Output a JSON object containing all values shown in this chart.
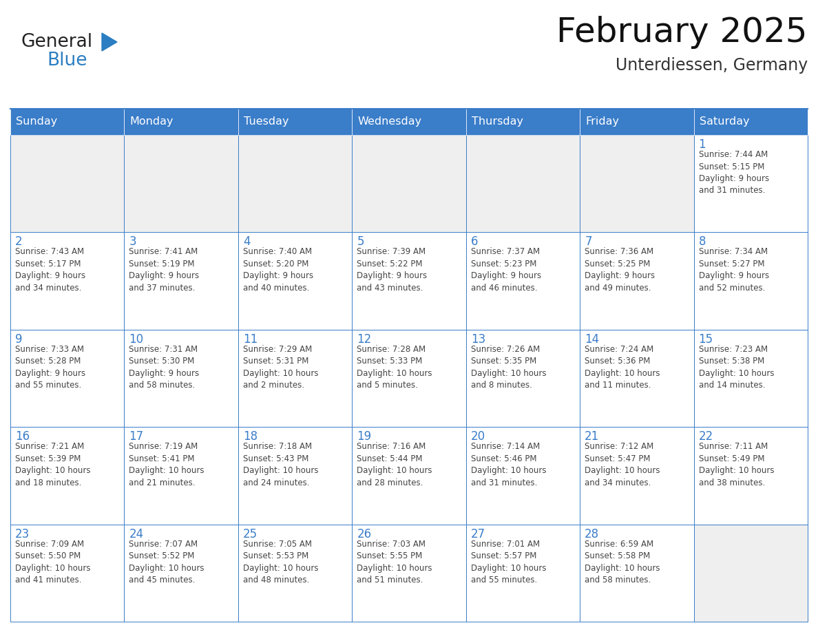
{
  "title": "February 2025",
  "subtitle": "Unterdiessen, Germany",
  "header_color": "#3A7DC9",
  "header_text_color": "#FFFFFF",
  "cell_bg_white": "#FFFFFF",
  "cell_bg_gray": "#EFEFEF",
  "border_color": "#3A7DC9",
  "day_num_color": "#3A7DC9",
  "cell_text_color": "#444444",
  "title_color": "#111111",
  "subtitle_color": "#333333",
  "logo_color1": "#222222",
  "logo_color2": "#2B7EC1",
  "weekdays": [
    "Sunday",
    "Monday",
    "Tuesday",
    "Wednesday",
    "Thursday",
    "Friday",
    "Saturday"
  ],
  "calendar": [
    [
      {
        "day": 0,
        "info": ""
      },
      {
        "day": 0,
        "info": ""
      },
      {
        "day": 0,
        "info": ""
      },
      {
        "day": 0,
        "info": ""
      },
      {
        "day": 0,
        "info": ""
      },
      {
        "day": 0,
        "info": ""
      },
      {
        "day": 1,
        "info": "Sunrise: 7:44 AM\nSunset: 5:15 PM\nDaylight: 9 hours\nand 31 minutes."
      }
    ],
    [
      {
        "day": 2,
        "info": "Sunrise: 7:43 AM\nSunset: 5:17 PM\nDaylight: 9 hours\nand 34 minutes."
      },
      {
        "day": 3,
        "info": "Sunrise: 7:41 AM\nSunset: 5:19 PM\nDaylight: 9 hours\nand 37 minutes."
      },
      {
        "day": 4,
        "info": "Sunrise: 7:40 AM\nSunset: 5:20 PM\nDaylight: 9 hours\nand 40 minutes."
      },
      {
        "day": 5,
        "info": "Sunrise: 7:39 AM\nSunset: 5:22 PM\nDaylight: 9 hours\nand 43 minutes."
      },
      {
        "day": 6,
        "info": "Sunrise: 7:37 AM\nSunset: 5:23 PM\nDaylight: 9 hours\nand 46 minutes."
      },
      {
        "day": 7,
        "info": "Sunrise: 7:36 AM\nSunset: 5:25 PM\nDaylight: 9 hours\nand 49 minutes."
      },
      {
        "day": 8,
        "info": "Sunrise: 7:34 AM\nSunset: 5:27 PM\nDaylight: 9 hours\nand 52 minutes."
      }
    ],
    [
      {
        "day": 9,
        "info": "Sunrise: 7:33 AM\nSunset: 5:28 PM\nDaylight: 9 hours\nand 55 minutes."
      },
      {
        "day": 10,
        "info": "Sunrise: 7:31 AM\nSunset: 5:30 PM\nDaylight: 9 hours\nand 58 minutes."
      },
      {
        "day": 11,
        "info": "Sunrise: 7:29 AM\nSunset: 5:31 PM\nDaylight: 10 hours\nand 2 minutes."
      },
      {
        "day": 12,
        "info": "Sunrise: 7:28 AM\nSunset: 5:33 PM\nDaylight: 10 hours\nand 5 minutes."
      },
      {
        "day": 13,
        "info": "Sunrise: 7:26 AM\nSunset: 5:35 PM\nDaylight: 10 hours\nand 8 minutes."
      },
      {
        "day": 14,
        "info": "Sunrise: 7:24 AM\nSunset: 5:36 PM\nDaylight: 10 hours\nand 11 minutes."
      },
      {
        "day": 15,
        "info": "Sunrise: 7:23 AM\nSunset: 5:38 PM\nDaylight: 10 hours\nand 14 minutes."
      }
    ],
    [
      {
        "day": 16,
        "info": "Sunrise: 7:21 AM\nSunset: 5:39 PM\nDaylight: 10 hours\nand 18 minutes."
      },
      {
        "day": 17,
        "info": "Sunrise: 7:19 AM\nSunset: 5:41 PM\nDaylight: 10 hours\nand 21 minutes."
      },
      {
        "day": 18,
        "info": "Sunrise: 7:18 AM\nSunset: 5:43 PM\nDaylight: 10 hours\nand 24 minutes."
      },
      {
        "day": 19,
        "info": "Sunrise: 7:16 AM\nSunset: 5:44 PM\nDaylight: 10 hours\nand 28 minutes."
      },
      {
        "day": 20,
        "info": "Sunrise: 7:14 AM\nSunset: 5:46 PM\nDaylight: 10 hours\nand 31 minutes."
      },
      {
        "day": 21,
        "info": "Sunrise: 7:12 AM\nSunset: 5:47 PM\nDaylight: 10 hours\nand 34 minutes."
      },
      {
        "day": 22,
        "info": "Sunrise: 7:11 AM\nSunset: 5:49 PM\nDaylight: 10 hours\nand 38 minutes."
      }
    ],
    [
      {
        "day": 23,
        "info": "Sunrise: 7:09 AM\nSunset: 5:50 PM\nDaylight: 10 hours\nand 41 minutes."
      },
      {
        "day": 24,
        "info": "Sunrise: 7:07 AM\nSunset: 5:52 PM\nDaylight: 10 hours\nand 45 minutes."
      },
      {
        "day": 25,
        "info": "Sunrise: 7:05 AM\nSunset: 5:53 PM\nDaylight: 10 hours\nand 48 minutes."
      },
      {
        "day": 26,
        "info": "Sunrise: 7:03 AM\nSunset: 5:55 PM\nDaylight: 10 hours\nand 51 minutes."
      },
      {
        "day": 27,
        "info": "Sunrise: 7:01 AM\nSunset: 5:57 PM\nDaylight: 10 hours\nand 55 minutes."
      },
      {
        "day": 28,
        "info": "Sunrise: 6:59 AM\nSunset: 5:58 PM\nDaylight: 10 hours\nand 58 minutes."
      },
      {
        "day": 0,
        "info": ""
      }
    ]
  ]
}
